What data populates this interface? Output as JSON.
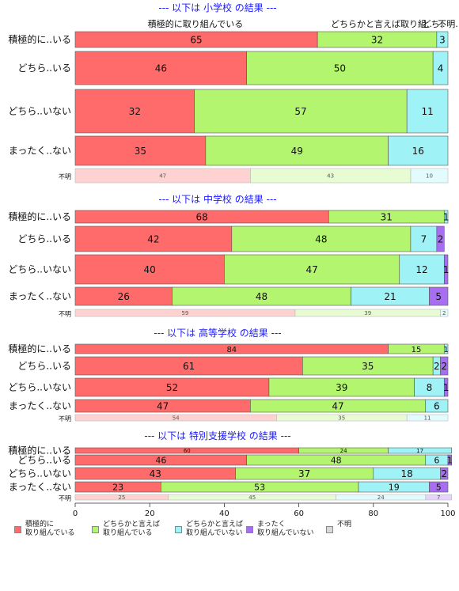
{
  "chart_data": {
    "type": "bar",
    "orientation": "horizontal-stacked",
    "xlim": [
      0,
      100
    ],
    "x_ticks": [
      "0",
      "20",
      "40",
      "60",
      "80",
      "100"
    ],
    "series_colors": [
      "#ff6b6b",
      "#b3f56e",
      "#9ff2f6",
      "#a86ef2",
      "#d9d9d9"
    ],
    "legend": [
      "積極的に\n取り組んでいる",
      "どちらかと言えば\n取り組んでいる",
      "どちらかと言えば\n取り組んでいない",
      "まったく\n取り組んでいない",
      "不明"
    ],
    "top_labels": [
      "積極的に取り組んでいる",
      "どちらかと言えば取り組..",
      "どち..",
      "不明."
    ],
    "panels": [
      {
        "title": "--- 以下は 小学校 の結果 ---",
        "rows": [
          {
            "label": "積極的に..いる",
            "values": [
              65,
              32,
              3,
              0,
              0
            ]
          },
          {
            "label": "どちら..いる",
            "values": [
              46,
              50,
              4,
              0,
              0
            ]
          },
          {
            "label": "どちら..いない",
            "values": [
              32,
              57,
              11,
              0,
              0
            ]
          },
          {
            "label": "まったく..ない",
            "values": [
              35,
              49,
              16,
              0,
              0
            ]
          },
          {
            "label": "不明",
            "values": [
              47,
              43,
              10,
              0,
              0
            ],
            "faded": true
          }
        ]
      },
      {
        "title": "--- 以下は 中学校 の結果 ---",
        "rows": [
          {
            "label": "積極的に..いる",
            "values": [
              68,
              31,
              1,
              0,
              0
            ]
          },
          {
            "label": "どちら..いる",
            "values": [
              42,
              48,
              7,
              2,
              0
            ]
          },
          {
            "label": "どちら..いない",
            "values": [
              40,
              47,
              12,
              1,
              0
            ]
          },
          {
            "label": "まったく..ない",
            "values": [
              26,
              48,
              21,
              5,
              0
            ]
          },
          {
            "label": "不明",
            "values": [
              59,
              39,
              2,
              0,
              0
            ],
            "faded": true
          }
        ]
      },
      {
        "title": "--- 以下は 高等学校 の結果 ---",
        "rows": [
          {
            "label": "積極的に..いる",
            "values": [
              84,
              15,
              1,
              0,
              0
            ]
          },
          {
            "label": "どちら..いる",
            "values": [
              61,
              35,
              2,
              2,
              0
            ]
          },
          {
            "label": "どちら..いない",
            "values": [
              52,
              39,
              8,
              1,
              0
            ]
          },
          {
            "label": "まったく..ない",
            "values": [
              47,
              47,
              6,
              0,
              0
            ]
          },
          {
            "label": "不明",
            "values": [
              54,
              35,
              11,
              0,
              0
            ],
            "faded": true
          }
        ]
      },
      {
        "title": "--- 以下は 特別支援学校 の結果 ---",
        "rows": [
          {
            "label": "積極的に..いる",
            "values": [
              60,
              24,
              17,
              0,
              0
            ]
          },
          {
            "label": "どちら..いる",
            "values": [
              46,
              48,
              6,
              1,
              0
            ]
          },
          {
            "label": "どちら..いない",
            "values": [
              43,
              37,
              18,
              2,
              0
            ]
          },
          {
            "label": "まったく..ない",
            "values": [
              23,
              53,
              19,
              5,
              0
            ]
          },
          {
            "label": "不明",
            "values": [
              25,
              45,
              24,
              7,
              0
            ],
            "faded": true
          }
        ]
      }
    ]
  }
}
